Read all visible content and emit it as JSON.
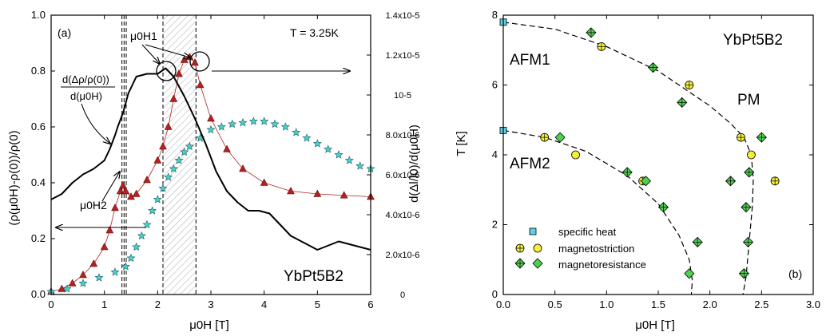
{
  "chart_data": [
    {
      "panel": "(a)",
      "type": "line",
      "title": "",
      "xlabel": "μ0H [T]",
      "ylabel_left": "(ρ(μ0H)-ρ(0))/ρ(0)",
      "ylabel_right": "d(Δl/l0)/d(μ0H)",
      "xlim": [
        0,
        6
      ],
      "ylim_left": [
        0,
        1.0
      ],
      "ylim_right": [
        0,
        1.4e-05
      ],
      "x_ticks": [
        "0",
        "1",
        "2",
        "3",
        "4",
        "5",
        "6"
      ],
      "y_ticks_left": [
        "0.0",
        "0.2",
        "0.4",
        "0.6",
        "0.8",
        "1.0"
      ],
      "y_ticks_right": [
        "0",
        "2.0x10-6",
        "4.0x10-6",
        "6.0x10-6",
        "8.0x10-6",
        "10-5",
        "1.2x10-5",
        "1.4x10-5"
      ],
      "temperature_label": "T = 3.25K",
      "compound_label": "YbPt5B2",
      "panel_label": "(a)",
      "annotations": {
        "h1": "μ0H1",
        "h2": "μ0H2",
        "derivative_num": "d(Δρ/ρ(0))",
        "derivative_den": "d(μ0H)"
      },
      "vlines": [
        1.33,
        1.37,
        1.41,
        2.1,
        2.72
      ],
      "shaded_region": [
        2.1,
        2.72
      ],
      "series": [
        {
          "marker": "triangle",
          "color": "#b22222",
          "axis": "left",
          "x": [
            0,
            0.2,
            0.4,
            0.6,
            0.8,
            1.0,
            1.1,
            1.2,
            1.3,
            1.35,
            1.4,
            1.5,
            1.6,
            1.8,
            2.0,
            2.1,
            2.2,
            2.3,
            2.4,
            2.5,
            2.6,
            2.7,
            2.8,
            3.0,
            3.3,
            3.6,
            4.0,
            4.5,
            5.0,
            5.5,
            6.0
          ],
          "y": [
            0.01,
            0.02,
            0.04,
            0.07,
            0.11,
            0.17,
            0.23,
            0.31,
            0.37,
            0.39,
            0.37,
            0.35,
            0.36,
            0.41,
            0.48,
            0.53,
            0.6,
            0.7,
            0.79,
            0.84,
            0.85,
            0.83,
            0.75,
            0.63,
            0.52,
            0.45,
            0.4,
            0.37,
            0.36,
            0.355,
            0.35
          ]
        },
        {
          "marker": "star",
          "color": "#48d1cc",
          "axis": "left",
          "x": [
            0,
            0.3,
            0.6,
            0.9,
            1.2,
            1.4,
            1.5,
            1.6,
            1.7,
            1.8,
            1.9,
            2.0,
            2.1,
            2.2,
            2.3,
            2.4,
            2.5,
            2.6,
            2.8,
            3.0,
            3.2,
            3.4,
            3.6,
            3.8,
            4.0,
            4.2,
            4.4,
            4.6,
            4.8,
            5.0,
            5.2,
            5.4,
            5.6,
            5.8,
            6.0
          ],
          "y": [
            0.01,
            0.02,
            0.04,
            0.06,
            0.08,
            0.1,
            0.13,
            0.17,
            0.21,
            0.25,
            0.3,
            0.34,
            0.38,
            0.42,
            0.45,
            0.48,
            0.51,
            0.53,
            0.56,
            0.59,
            0.6,
            0.61,
            0.615,
            0.62,
            0.62,
            0.61,
            0.6,
            0.58,
            0.56,
            0.54,
            0.52,
            0.5,
            0.48,
            0.46,
            0.45
          ]
        },
        {
          "style": "solid-line",
          "color": "#000000",
          "axis": "left",
          "x": [
            0,
            0.2,
            0.4,
            0.6,
            0.8,
            1.0,
            1.1,
            1.2,
            1.25,
            1.35,
            1.45,
            1.6,
            1.8,
            2.0,
            2.15,
            2.3,
            2.5,
            2.7,
            2.9,
            3.1,
            3.3,
            3.5,
            3.7,
            3.9,
            4.1,
            4.3,
            4.5,
            4.7,
            5.0,
            5.2,
            5.4,
            5.6,
            5.8,
            6.0
          ],
          "y": [
            0.34,
            0.36,
            0.4,
            0.43,
            0.45,
            0.48,
            0.52,
            0.57,
            0.6,
            0.65,
            0.72,
            0.78,
            0.79,
            0.79,
            0.81,
            0.78,
            0.71,
            0.63,
            0.54,
            0.44,
            0.37,
            0.33,
            0.3,
            0.3,
            0.29,
            0.25,
            0.21,
            0.19,
            0.16,
            0.175,
            0.19,
            0.18,
            0.17,
            0.16
          ]
        }
      ]
    },
    {
      "panel": "(b)",
      "type": "scatter",
      "title": "",
      "xlabel": "μ0H [T]",
      "ylabel": "T [K]",
      "xlim": [
        0,
        3.0
      ],
      "ylim": [
        0,
        8
      ],
      "x_ticks": [
        "0.0",
        "0.5",
        "1.0",
        "1.5",
        "2.0",
        "2.5",
        "3.0"
      ],
      "y_ticks": [
        "0",
        "2",
        "4",
        "6",
        "8"
      ],
      "compound_label": "YbPt5B2",
      "panel_label": "(b)",
      "phase_labels": [
        "AFM1",
        "AFM2",
        "PM"
      ],
      "legend_position": "bottom-left",
      "series": [
        {
          "name": "specific heat",
          "marker": "square",
          "color": "#5bd3e6",
          "x": [
            0,
            0
          ],
          "y": [
            7.8,
            4.7
          ]
        },
        {
          "name": "magnetostriction",
          "marker": "circle",
          "color": "#f5ef3a",
          "x": [
            0.4,
            0.7,
            0.95,
            1.35,
            1.8,
            2.3,
            2.4,
            2.63
          ],
          "y": [
            4.5,
            4.0,
            7.1,
            3.25,
            6.0,
            4.5,
            4.0,
            3.25
          ],
          "crossed": [
            true,
            false,
            true,
            true,
            true,
            true,
            false,
            true
          ]
        },
        {
          "name": "magnetoresistance",
          "marker": "diamond",
          "color": "#4fd14f",
          "x": [
            0.55,
            0.85,
            1.2,
            1.38,
            1.55,
            1.45,
            1.73,
            1.88,
            1.8,
            2.2,
            2.38,
            2.5,
            2.35,
            2.37,
            2.33
          ],
          "y": [
            4.5,
            7.5,
            3.5,
            3.25,
            2.5,
            6.5,
            5.5,
            1.5,
            0.6,
            3.25,
            3.5,
            4.5,
            2.5,
            1.5,
            0.6
          ],
          "crossed": [
            false,
            true,
            true,
            false,
            true,
            true,
            true,
            true,
            false,
            true,
            true,
            true,
            true,
            true,
            true
          ]
        }
      ],
      "phase_boundaries": [
        {
          "x": [
            0,
            0.5,
            1.0,
            1.5,
            2.0,
            2.2,
            2.33,
            2.4,
            2.42,
            2.41,
            2.38,
            2.35,
            2.32
          ],
          "y": [
            7.8,
            7.6,
            7.1,
            6.4,
            5.4,
            4.9,
            4.5,
            4.0,
            3.3,
            2.5,
            1.5,
            0.5,
            0
          ]
        },
        {
          "x": [
            0,
            0.4,
            0.8,
            1.2,
            1.5,
            1.7,
            1.8,
            1.83,
            1.82
          ],
          "y": [
            4.7,
            4.5,
            4.1,
            3.4,
            2.6,
            1.7,
            1.0,
            0.4,
            0
          ]
        }
      ]
    }
  ]
}
